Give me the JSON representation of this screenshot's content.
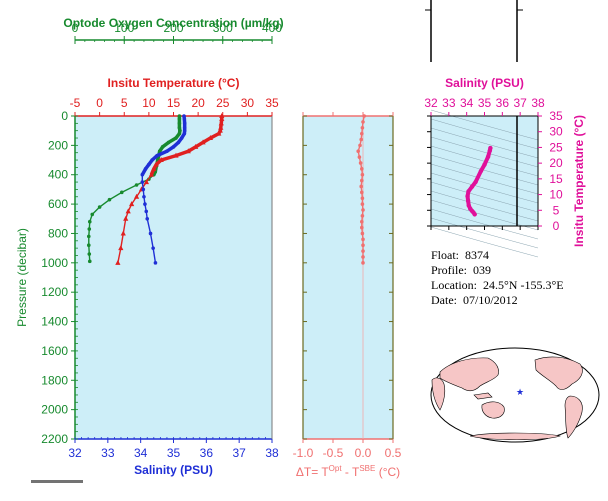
{
  "colors": {
    "plot_bg": "#cdeef8",
    "oxygen": "#178a2e",
    "temperature": "#e02020",
    "salinity": "#1f2fd6",
    "delta_t": "#f07070",
    "ts_line": "#e0109a",
    "land": "#f6c6c6"
  },
  "info": {
    "float_label": "Float:",
    "float": "8374",
    "profile_label": "Profile:",
    "profile": "039",
    "location_label": "Location:",
    "location": "24.5°N  -155.3°E",
    "date_label": "Date:",
    "date": "07/10/2012"
  },
  "chart_data": [
    {
      "type": "line",
      "panel": "profiles",
      "ylabel": "Pressure (decibar)",
      "ylim": [
        2200,
        0
      ],
      "yticks": [
        0,
        200,
        400,
        600,
        800,
        1000,
        1200,
        1400,
        1600,
        1800,
        2000,
        2200
      ],
      "grid": false,
      "axes": {
        "oxygen": {
          "label": "Optode Oxygen Concentration (µm/kg)",
          "lim": [
            0,
            400
          ],
          "ticks": [
            0,
            100,
            200,
            300,
            400
          ]
        },
        "temperature": {
          "label": "Insitu Temperature (°C)",
          "lim": [
            -5,
            35
          ],
          "ticks": [
            -5,
            0,
            5,
            10,
            15,
            20,
            25,
            30,
            35
          ]
        },
        "salinity": {
          "label": "Salinity (PSU)",
          "lim": [
            32,
            38
          ],
          "ticks": [
            32,
            33,
            34,
            35,
            36,
            37,
            38
          ]
        }
      },
      "series": [
        {
          "key": "oxygen",
          "marker": "circle",
          "pressure": [
            0,
            20,
            50,
            80,
            100,
            120,
            150,
            180,
            210,
            240,
            270,
            300,
            330,
            360,
            380,
            400,
            430,
            470,
            520,
            570,
            620,
            670,
            720,
            770,
            820,
            880,
            940,
            990
          ],
          "values": [
            212,
            212,
            212,
            212,
            213,
            212,
            205,
            190,
            178,
            172,
            170,
            168,
            166,
            164,
            163,
            160,
            150,
            125,
            95,
            70,
            50,
            35,
            30,
            29,
            28,
            28,
            29,
            30
          ]
        },
        {
          "key": "temperature",
          "marker": "triangle",
          "pressure": [
            0,
            20,
            50,
            80,
            100,
            120,
            150,
            180,
            210,
            240,
            270,
            300,
            330,
            360,
            400,
            450,
            500,
            550,
            600,
            650,
            700,
            800,
            900,
            1000
          ],
          "values": [
            24.8,
            24.8,
            24.7,
            24.6,
            24.5,
            24.2,
            22.5,
            21.0,
            19.5,
            18.0,
            15.5,
            12.5,
            11.5,
            11.0,
            10.5,
            9.5,
            8.5,
            7.5,
            6.5,
            5.8,
            5.3,
            4.8,
            4.3,
            3.7
          ]
        },
        {
          "key": "salinity",
          "marker": "circle",
          "pressure": [
            0,
            20,
            50,
            80,
            100,
            120,
            150,
            180,
            210,
            240,
            270,
            300,
            330,
            360,
            400,
            450,
            500,
            550,
            600,
            650,
            700,
            800,
            900,
            1000
          ],
          "values": [
            35.32,
            35.33,
            35.34,
            35.34,
            35.34,
            35.33,
            35.25,
            35.15,
            35.0,
            34.8,
            34.5,
            34.35,
            34.25,
            34.15,
            34.05,
            34.05,
            34.08,
            34.1,
            34.13,
            34.17,
            34.2,
            34.3,
            34.38,
            34.45
          ]
        }
      ]
    },
    {
      "type": "scatter",
      "panel": "delta_t",
      "xlabel": "ΔT= T",
      "xlabel_sup1": "Opt",
      "xlabel_mid": " - T",
      "xlabel_sup2": "SBE",
      "xlabel_end": " (°C)",
      "xlim": [
        -1.0,
        0.5
      ],
      "xticks": [
        "-1.0",
        "-0.5",
        "0.0",
        "0.5"
      ],
      "ylim": [
        2200,
        0
      ],
      "pressure": [
        0,
        40,
        80,
        120,
        160,
        200,
        240,
        280,
        320,
        360,
        400,
        440,
        480,
        520,
        560,
        600,
        640,
        680,
        720,
        760,
        800,
        840,
        880,
        920,
        960,
        1000
      ],
      "values": [
        0.02,
        0.0,
        -0.01,
        -0.02,
        -0.03,
        -0.05,
        -0.08,
        -0.06,
        -0.04,
        -0.02,
        -0.01,
        -0.02,
        -0.03,
        -0.02,
        -0.01,
        -0.01,
        0.0,
        -0.01,
        -0.02,
        -0.02,
        -0.01,
        0.0,
        0.0,
        0.0,
        0.0,
        0.0
      ]
    },
    {
      "type": "line",
      "panel": "ts_diagram",
      "xlabel": "Salinity (PSU)",
      "ylabel": "Insitu Temperature (°C)",
      "xlim": [
        32,
        38
      ],
      "xticks": [
        "32",
        "33",
        "34",
        "35",
        "36",
        "37",
        "38"
      ],
      "ylim": [
        0,
        35
      ],
      "yticks": [
        "0",
        "5",
        "10",
        "15",
        "20",
        "25",
        "30",
        "35"
      ],
      "x": [
        35.33,
        35.3,
        35.2,
        35.0,
        34.8,
        34.5,
        34.3,
        34.1,
        34.05,
        34.08,
        34.12,
        34.2,
        34.3,
        34.38,
        34.45
      ],
      "y": [
        24.8,
        24.0,
        22.0,
        19.5,
        17.5,
        14.0,
        12.5,
        11.0,
        9.5,
        8.0,
        6.5,
        5.5,
        4.8,
        4.3,
        3.7
      ]
    }
  ]
}
